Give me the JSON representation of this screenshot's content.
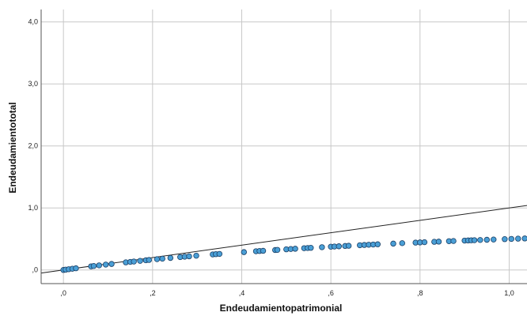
{
  "chart_data": {
    "type": "scatter",
    "xlabel": "Endeudamientopatrimonial",
    "ylabel": "Endeudamientototal",
    "xlim": [
      -0.05,
      1.04
    ],
    "ylim": [
      -0.22,
      4.2
    ],
    "x_ticks": [
      {
        "value": 0.0,
        "label": ",0"
      },
      {
        "value": 0.2,
        "label": ",2"
      },
      {
        "value": 0.4,
        "label": ",4"
      },
      {
        "value": 0.6,
        "label": ",6"
      },
      {
        "value": 0.8,
        "label": ",8"
      },
      {
        "value": 1.0,
        "label": "1,0"
      }
    ],
    "y_ticks": [
      {
        "value": 0.0,
        "label": ",0"
      },
      {
        "value": 1.0,
        "label": "1,0"
      },
      {
        "value": 2.0,
        "label": "2,0"
      },
      {
        "value": 3.0,
        "label": "3,0"
      },
      {
        "value": 4.0,
        "label": "4,0"
      }
    ],
    "grid": true,
    "marker_color": "#4a9fd6",
    "marker_edge_color": "#1a3f66",
    "reference_line": {
      "x": [
        -0.05,
        1.04
      ],
      "y": [
        -0.05,
        1.04
      ],
      "color": "#222222"
    },
    "points": [
      {
        "x": 0.0,
        "y": 0.0
      },
      {
        "x": 0.005,
        "y": 0.005
      },
      {
        "x": 0.012,
        "y": 0.012
      },
      {
        "x": 0.02,
        "y": 0.02
      },
      {
        "x": 0.028,
        "y": 0.027
      },
      {
        "x": 0.062,
        "y": 0.058
      },
      {
        "x": 0.068,
        "y": 0.064
      },
      {
        "x": 0.08,
        "y": 0.074
      },
      {
        "x": 0.095,
        "y": 0.087
      },
      {
        "x": 0.108,
        "y": 0.097
      },
      {
        "x": 0.14,
        "y": 0.123
      },
      {
        "x": 0.15,
        "y": 0.13
      },
      {
        "x": 0.158,
        "y": 0.136
      },
      {
        "x": 0.172,
        "y": 0.147
      },
      {
        "x": 0.185,
        "y": 0.156
      },
      {
        "x": 0.192,
        "y": 0.161
      },
      {
        "x": 0.21,
        "y": 0.174
      },
      {
        "x": 0.222,
        "y": 0.182
      },
      {
        "x": 0.24,
        "y": 0.194
      },
      {
        "x": 0.262,
        "y": 0.208
      },
      {
        "x": 0.272,
        "y": 0.214
      },
      {
        "x": 0.282,
        "y": 0.22
      },
      {
        "x": 0.298,
        "y": 0.23
      },
      {
        "x": 0.335,
        "y": 0.251
      },
      {
        "x": 0.342,
        "y": 0.255
      },
      {
        "x": 0.35,
        "y": 0.259
      },
      {
        "x": 0.405,
        "y": 0.288
      },
      {
        "x": 0.432,
        "y": 0.302
      },
      {
        "x": 0.44,
        "y": 0.306
      },
      {
        "x": 0.448,
        "y": 0.309
      },
      {
        "x": 0.475,
        "y": 0.322
      },
      {
        "x": 0.48,
        "y": 0.324
      },
      {
        "x": 0.5,
        "y": 0.333
      },
      {
        "x": 0.51,
        "y": 0.338
      },
      {
        "x": 0.52,
        "y": 0.342
      },
      {
        "x": 0.54,
        "y": 0.351
      },
      {
        "x": 0.548,
        "y": 0.354
      },
      {
        "x": 0.555,
        "y": 0.357
      },
      {
        "x": 0.58,
        "y": 0.367
      },
      {
        "x": 0.6,
        "y": 0.375
      },
      {
        "x": 0.608,
        "y": 0.378
      },
      {
        "x": 0.618,
        "y": 0.382
      },
      {
        "x": 0.632,
        "y": 0.387
      },
      {
        "x": 0.64,
        "y": 0.39
      },
      {
        "x": 0.665,
        "y": 0.399
      },
      {
        "x": 0.675,
        "y": 0.403
      },
      {
        "x": 0.685,
        "y": 0.407
      },
      {
        "x": 0.695,
        "y": 0.41
      },
      {
        "x": 0.705,
        "y": 0.414
      },
      {
        "x": 0.74,
        "y": 0.425
      },
      {
        "x": 0.76,
        "y": 0.432
      },
      {
        "x": 0.79,
        "y": 0.441
      },
      {
        "x": 0.8,
        "y": 0.444
      },
      {
        "x": 0.81,
        "y": 0.448
      },
      {
        "x": 0.832,
        "y": 0.454
      },
      {
        "x": 0.842,
        "y": 0.457
      },
      {
        "x": 0.865,
        "y": 0.464
      },
      {
        "x": 0.875,
        "y": 0.467
      },
      {
        "x": 0.9,
        "y": 0.474
      },
      {
        "x": 0.908,
        "y": 0.476
      },
      {
        "x": 0.915,
        "y": 0.478
      },
      {
        "x": 0.922,
        "y": 0.48
      },
      {
        "x": 0.935,
        "y": 0.483
      },
      {
        "x": 0.95,
        "y": 0.487
      },
      {
        "x": 0.965,
        "y": 0.491
      },
      {
        "x": 0.99,
        "y": 0.497
      },
      {
        "x": 1.005,
        "y": 0.501
      },
      {
        "x": 1.02,
        "y": 0.505
      },
      {
        "x": 1.035,
        "y": 0.508
      }
    ]
  }
}
